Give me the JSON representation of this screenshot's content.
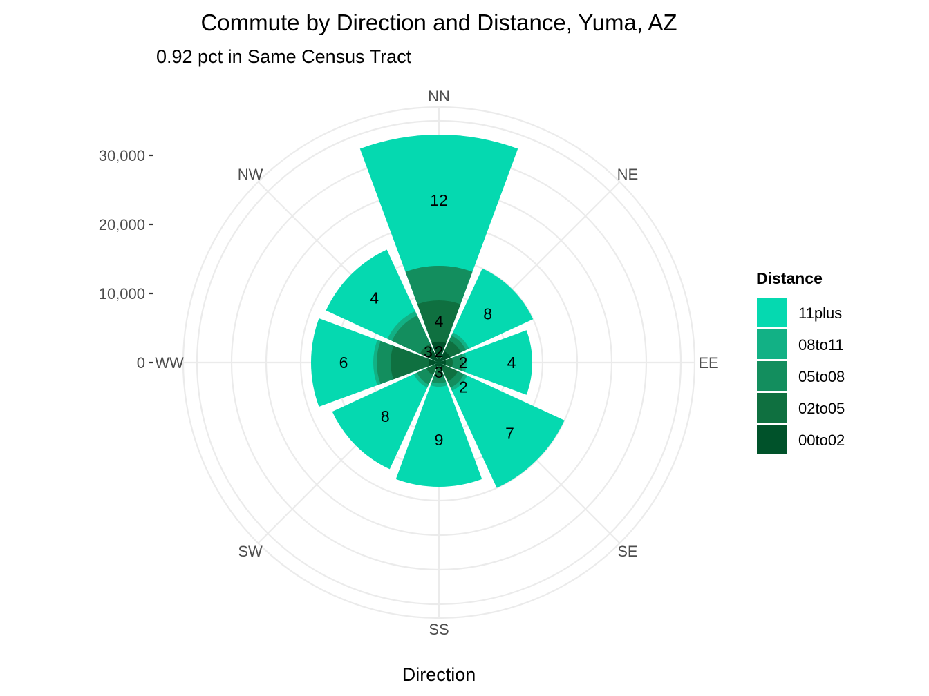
{
  "chart_data": {
    "type": "bar",
    "coord": "polar",
    "title": "Commute by Direction and Distance, Yuma, AZ",
    "subtitle": "0.92 pct in Same Census Tract",
    "xlabel": "Direction",
    "ylabel": "",
    "ylim": [
      0,
      37000
    ],
    "y_ticks": [
      0,
      10000,
      20000,
      30000
    ],
    "y_tick_labels": [
      "0",
      "10,000",
      "20,000",
      "30,000"
    ],
    "grid": true,
    "legend_position": "right",
    "legend_title": "Distance",
    "categories": [
      "NN",
      "NE",
      "EE",
      "SE",
      "SS",
      "SW",
      "WW",
      "NW"
    ],
    "series": [
      {
        "name": "00to02",
        "color": "#00522a",
        "values": [
          3000,
          1800,
          1000,
          900,
          500,
          700,
          1500,
          1800
        ]
      },
      {
        "name": "02to05",
        "color": "#0f7040",
        "values": [
          9000,
          3500,
          2000,
          3000,
          2000,
          2000,
          7000,
          3000
        ]
      },
      {
        "name": "05to08",
        "color": "#138e5e",
        "values": [
          14000,
          4300,
          3500,
          4000,
          3000,
          3500,
          9000,
          7500
        ]
      },
      {
        "name": "08to11",
        "color": "#12b185",
        "values": [
          14000,
          4800,
          4000,
          4500,
          3500,
          4000,
          9500,
          8200
        ]
      },
      {
        "name": "11plus",
        "color": "#05d9b0",
        "values": [
          33000,
          15000,
          13500,
          20000,
          18000,
          17000,
          18500,
          18000
        ]
      }
    ],
    "bar_labels": [
      {
        "text": "12",
        "category": "NN",
        "r": 23500
      },
      {
        "text": "4",
        "category": "NN",
        "r": 6000
      },
      {
        "text": "8",
        "category": "NE",
        "r": 10000
      },
      {
        "text": "4",
        "category": "EE",
        "r": 10500
      },
      {
        "text": "2",
        "category": "EE",
        "r": 3500
      },
      {
        "text": "7",
        "category": "SE",
        "r": 14500
      },
      {
        "text": "2",
        "category": "SE",
        "r": 5000
      },
      {
        "text": "9",
        "category": "SS",
        "r": 11200
      },
      {
        "text": "3",
        "category": "SS",
        "r": 1400
      },
      {
        "text": "8",
        "category": "SW",
        "r": 11000
      },
      {
        "text": "6",
        "category": "WW",
        "r": 13800
      },
      {
        "text": "4",
        "category": "NW",
        "r": 13200
      },
      {
        "text": "3",
        "category": "NW",
        "r": 2200
      },
      {
        "text": "2",
        "category": "NN",
        "r": 1600
      }
    ]
  }
}
